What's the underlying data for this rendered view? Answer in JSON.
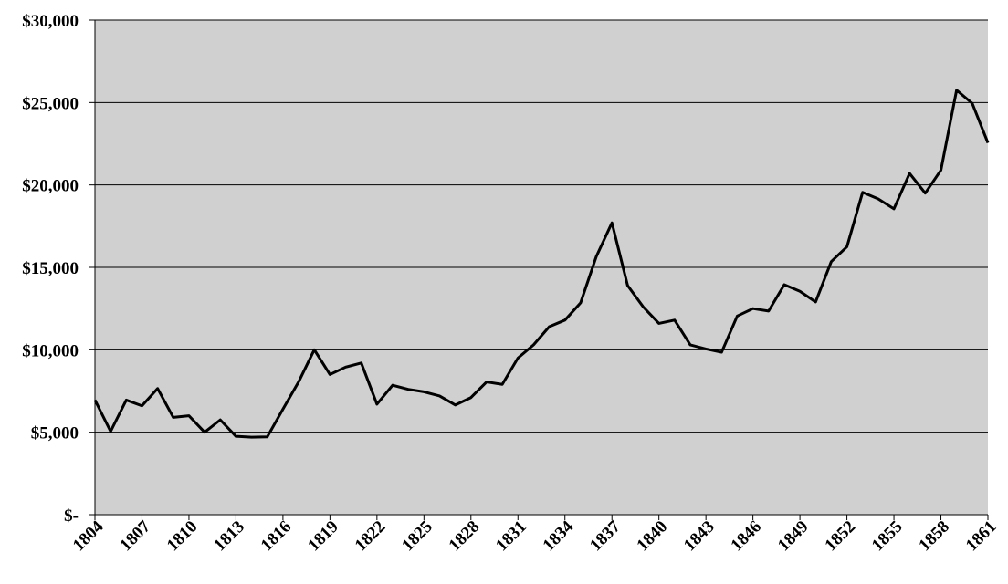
{
  "chart_data": {
    "type": "line",
    "x": [
      1804,
      1805,
      1806,
      1807,
      1808,
      1809,
      1810,
      1811,
      1812,
      1813,
      1814,
      1815,
      1816,
      1817,
      1818,
      1819,
      1820,
      1821,
      1822,
      1823,
      1824,
      1825,
      1826,
      1827,
      1828,
      1829,
      1830,
      1831,
      1832,
      1833,
      1834,
      1835,
      1836,
      1837,
      1838,
      1839,
      1840,
      1841,
      1842,
      1843,
      1844,
      1845,
      1846,
      1847,
      1848,
      1849,
      1850,
      1851,
      1852,
      1853,
      1854,
      1855,
      1856,
      1857,
      1858,
      1859,
      1860,
      1861
    ],
    "values": [
      6950,
      5050,
      6950,
      6600,
      7650,
      5900,
      6000,
      5000,
      5750,
      4750,
      4700,
      4720,
      6400,
      8050,
      10000,
      8500,
      8950,
      9200,
      6700,
      7850,
      7600,
      7450,
      7200,
      6650,
      7100,
      8050,
      7900,
      9500,
      10300,
      11400,
      11800,
      12850,
      15650,
      17700,
      13900,
      12600,
      11600,
      11800,
      10300,
      10050,
      9850,
      12050,
      12500,
      12350,
      13950,
      13550,
      12900,
      15350,
      16250,
      19550,
      19150,
      18550,
      20700,
      19500,
      20900,
      25750,
      24950,
      22550
    ],
    "color": "#000000",
    "xlim": [
      1804,
      1861
    ],
    "xticks": [
      1804,
      1807,
      1810,
      1813,
      1816,
      1819,
      1822,
      1825,
      1828,
      1831,
      1834,
      1837,
      1840,
      1843,
      1846,
      1849,
      1852,
      1855,
      1858,
      1861
    ],
    "ylim": [
      0,
      30000
    ],
    "yticks": [
      {
        "value": 0,
        "label": "$-"
      },
      {
        "value": 5000,
        "label": "$5,000"
      },
      {
        "value": 10000,
        "label": "$10,000"
      },
      {
        "value": 15000,
        "label": "$15,000"
      },
      {
        "value": 20000,
        "label": "$20,000"
      },
      {
        "value": 25000,
        "label": "$25,000"
      },
      {
        "value": 30000,
        "label": "$30,000"
      }
    ],
    "grid": true
  }
}
